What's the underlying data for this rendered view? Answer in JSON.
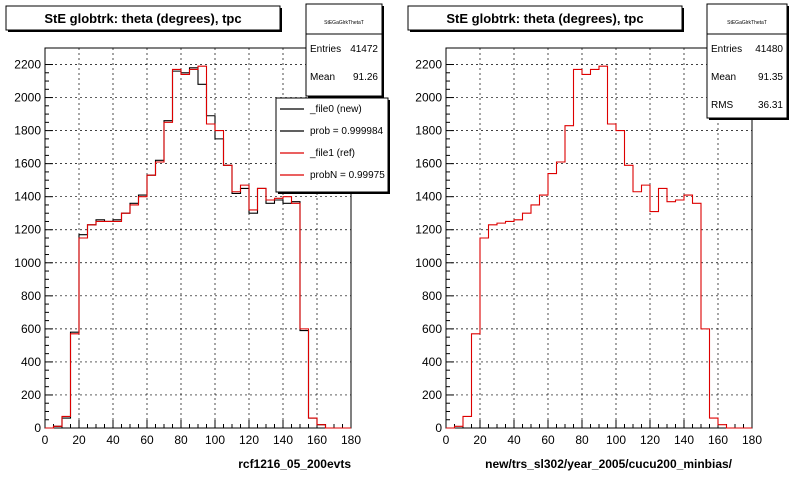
{
  "footer": "",
  "chart_data": [
    {
      "type": "histogram",
      "title": "StE globtrk: theta (degrees), tpc",
      "xlabel": "rcf1216_05_200evts",
      "ylabel": "",
      "xlim": [
        0,
        180
      ],
      "ylim": [
        0,
        2300
      ],
      "bin_width": 5,
      "x_ticks": [
        0,
        20,
        40,
        60,
        80,
        100,
        120,
        140,
        160,
        180
      ],
      "y_ticks": [
        0,
        200,
        400,
        600,
        800,
        1000,
        1200,
        1400,
        1600,
        1800,
        2000,
        2200
      ],
      "grid": true,
      "stats": {
        "name": "StEGaGlrkThetaT",
        "entries_label": "Entries",
        "entries": "41472",
        "mean_label": "Mean",
        "mean": "91.26"
      },
      "legend": {
        "placement": "top-right",
        "entries": [
          "_file0 (new)",
          "prob = 0.999984",
          "_file1 (ref)",
          "probN = 0.99975"
        ]
      },
      "series": [
        {
          "name": "_file0 (new)",
          "color": "#000000",
          "values": [
            0,
            10,
            60,
            580,
            1170,
            1230,
            1260,
            1250,
            1260,
            1300,
            1360,
            1410,
            1530,
            1620,
            1860,
            2160,
            2150,
            2180,
            2080,
            1890,
            1750,
            1590,
            1420,
            1450,
            1300,
            1450,
            1360,
            1380,
            1360,
            1370,
            590,
            60,
            20,
            0,
            0,
            0
          ]
        },
        {
          "name": "_file1 (ref)",
          "color": "#dd0000",
          "values": [
            0,
            10,
            70,
            570,
            1150,
            1230,
            1250,
            1250,
            1250,
            1300,
            1350,
            1400,
            1530,
            1610,
            1850,
            2170,
            2140,
            2170,
            2190,
            1840,
            1800,
            1590,
            1430,
            1470,
            1320,
            1450,
            1380,
            1390,
            1400,
            1360,
            600,
            60,
            20,
            0,
            0,
            0
          ]
        }
      ]
    },
    {
      "type": "histogram",
      "title": "StE globtrk: theta (degrees), tpc",
      "xlabel": "new/trs_sl302/year_2005/cucu200_minbias/",
      "ylabel": "",
      "xlim": [
        0,
        180
      ],
      "ylim": [
        0,
        2300
      ],
      "bin_width": 5,
      "x_ticks": [
        0,
        20,
        40,
        60,
        80,
        100,
        120,
        140,
        160,
        180
      ],
      "y_ticks": [
        0,
        200,
        400,
        600,
        800,
        1000,
        1200,
        1400,
        1600,
        1800,
        2000,
        2200
      ],
      "grid": true,
      "stats": {
        "name": "StEGaGlrkThetaT",
        "entries_label": "Entries",
        "entries": "41480",
        "mean_label": "Mean",
        "mean": "91.35",
        "rms_label": "RMS",
        "rms": "36.31"
      },
      "series": [
        {
          "name": "",
          "color": "#dd0000",
          "values": [
            0,
            10,
            70,
            570,
            1150,
            1230,
            1240,
            1250,
            1260,
            1300,
            1350,
            1410,
            1540,
            1610,
            1830,
            2170,
            2140,
            2170,
            2190,
            1840,
            1800,
            1590,
            1430,
            1470,
            1310,
            1450,
            1370,
            1380,
            1410,
            1360,
            600,
            60,
            20,
            0,
            0,
            0
          ]
        }
      ]
    }
  ]
}
